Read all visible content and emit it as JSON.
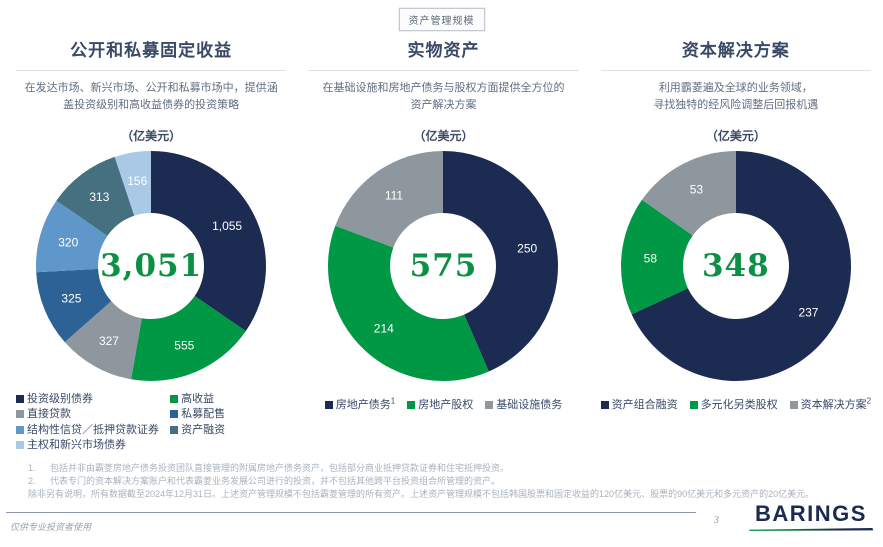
{
  "page": {
    "tag": "资产管理规模",
    "footer_note": "仅供专业投资者使用",
    "page_number": "3",
    "logo_text": "BARINGS"
  },
  "colors": {
    "navy": "#1c2b52",
    "green": "#009845",
    "gray": "#8e969e",
    "medium_blue": "#2d6296",
    "light_blue": "#5f97ca",
    "teal": "#44707f",
    "pale_blue": "#a9c9e6",
    "title_navy": "#3a4a66",
    "total_green": "#0c9144"
  },
  "columns": [
    {
      "title": "公开和私募固定收益",
      "description": "在发达市场、新兴市场、公开和私募市场中，提供涵\n盖投资级别和高收益债券的投资策略",
      "unit": "（亿美元）",
      "total": "3,051"
    },
    {
      "title": "实物资产",
      "description": "在基础设施和房地产债务与股权方面提供全方位的\n资产解决方案",
      "unit": "（亿美元）",
      "total": "575"
    },
    {
      "title": "资本解决方案",
      "description": "利用霸菱遍及全球的业务领域，\n寻找独特的经风险调整后回报机遇",
      "unit": "（亿美元）",
      "total": "348"
    }
  ],
  "chart_data": [
    {
      "type": "pie",
      "title": "公开和私募固定收益",
      "unit": "亿美元",
      "total": 3051,
      "center_label": "3,051",
      "segments": [
        {
          "label": "投资级别债券",
          "value": 1055,
          "value_label": "1,055",
          "color": "#1c2b52"
        },
        {
          "label": "高收益",
          "value": 555,
          "value_label": "555",
          "color": "#009845"
        },
        {
          "label": "直接贷款",
          "value": 327,
          "value_label": "327",
          "color": "#8e969e"
        },
        {
          "label": "私募配售",
          "value": 325,
          "value_label": "325",
          "color": "#2d6296"
        },
        {
          "label": "结构性信贷／抵押贷款证券",
          "value": 320,
          "value_label": "320",
          "color": "#5f97ca"
        },
        {
          "label": "资产融资",
          "value": 313,
          "value_label": "313",
          "color": "#44707f"
        },
        {
          "label": "主权和新兴市场债券",
          "value": 156,
          "value_label": "156",
          "color": "#a9c9e6"
        }
      ],
      "legend_columns": [
        [
          {
            "label": "投资级别债券",
            "color": "#1c2b52",
            "sup": ""
          },
          {
            "label": "直接贷款",
            "color": "#8e969e",
            "sup": ""
          },
          {
            "label": "结构性信贷／抵押贷款证券",
            "color": "#5f97ca",
            "sup": ""
          },
          {
            "label": "主权和新兴市场债券",
            "color": "#a9c9e6",
            "sup": ""
          }
        ],
        [
          {
            "label": "高收益",
            "color": "#009845",
            "sup": ""
          },
          {
            "label": "私募配售",
            "color": "#2d6296",
            "sup": ""
          },
          {
            "label": "资产融资",
            "color": "#44707f",
            "sup": ""
          }
        ]
      ]
    },
    {
      "type": "pie",
      "title": "实物资产",
      "unit": "亿美元",
      "total": 575,
      "center_label": "575",
      "segments": [
        {
          "label": "房地产债务",
          "value": 250,
          "value_label": "250",
          "color": "#1c2b52"
        },
        {
          "label": "房地产股权",
          "value": 214,
          "value_label": "214",
          "color": "#009845"
        },
        {
          "label": "基础设施债务",
          "value": 111,
          "value_label": "111",
          "color": "#8e969e"
        }
      ],
      "legend_row": [
        {
          "label": "房地产债务",
          "color": "#1c2b52",
          "sup": "1"
        },
        {
          "label": "房地产股权",
          "color": "#009845",
          "sup": ""
        },
        {
          "label": "基础设施债务",
          "color": "#8e969e",
          "sup": ""
        }
      ]
    },
    {
      "type": "pie",
      "title": "资本解决方案",
      "unit": "亿美元",
      "total": 348,
      "center_label": "348",
      "segments": [
        {
          "label": "资产组合融资",
          "value": 237,
          "value_label": "237",
          "color": "#1c2b52"
        },
        {
          "label": "多元化另类股权",
          "value": 58,
          "value_label": "58",
          "color": "#009845"
        },
        {
          "label": "资本解决方案",
          "value": 53,
          "value_label": "53",
          "color": "#8e969e"
        }
      ],
      "legend_row": [
        {
          "label": "资产组合融资",
          "color": "#1c2b52",
          "sup": ""
        },
        {
          "label": "多元化另类股权",
          "color": "#009845",
          "sup": ""
        },
        {
          "label": "资本解决方案",
          "color": "#8e969e",
          "sup": "2"
        }
      ]
    }
  ],
  "footnotes": [
    {
      "num": "1.",
      "text": "包括并非由霸菱房地产债务投资团队直接管理的附属房地产债务资产，包括部分商业抵押贷款证券和住宅抵押投资。"
    },
    {
      "num": "2.",
      "text": "代表专门的资本解决方案账户和代表霸菱业务发展公司进行的投资，并不包括其他跨平台投资组合所管理的资产。"
    },
    {
      "num": "",
      "text": "除非另有说明，所有数据截至2024年12月31日。上述资产管理规模不包括霸菱管理的所有资产。上述资产管理规模不包括韩国股票和固定收益的120亿美元、股票的90亿美元和多元资产的20亿美元。"
    }
  ]
}
